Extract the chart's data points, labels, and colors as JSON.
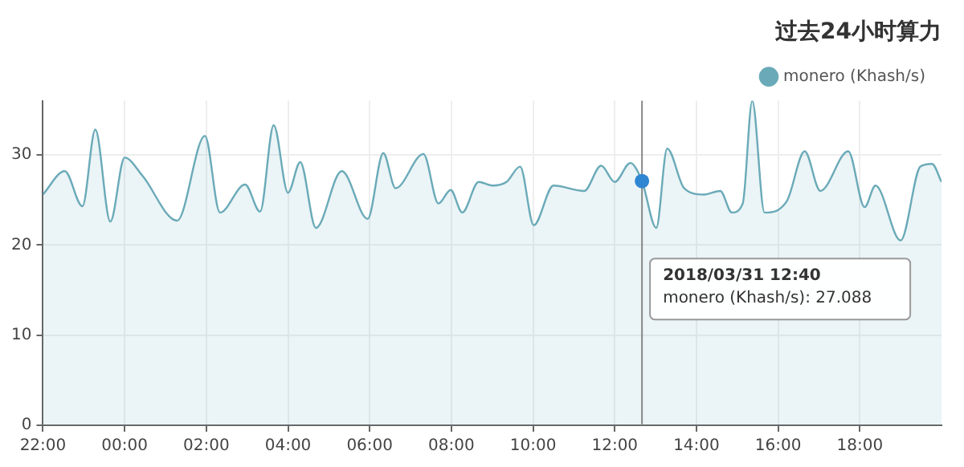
{
  "chart_data": {
    "type": "area",
    "title": "过去24小时算力",
    "legend": "top right",
    "grid": true,
    "marker": "none",
    "xlim": [
      "2018-03-30T22:00",
      "2018-03-31T20:00"
    ],
    "ylim": [
      0,
      36
    ],
    "yticks": [
      0,
      10,
      20,
      30
    ],
    "xticks": [
      {
        "value": "2018-03-30T22:00",
        "label": "22:00"
      },
      {
        "value": "2018-03-31T00:00",
        "label": "00:00"
      },
      {
        "value": "2018-03-31T02:00",
        "label": "02:00"
      },
      {
        "value": "2018-03-31T04:00",
        "label": "04:00"
      },
      {
        "value": "2018-03-31T06:00",
        "label": "06:00"
      },
      {
        "value": "2018-03-31T08:00",
        "label": "08:00"
      },
      {
        "value": "2018-03-31T10:00",
        "label": "10:00"
      },
      {
        "value": "2018-03-31T12:00",
        "label": "12:00"
      },
      {
        "value": "2018-03-31T14:00",
        "label": "14:00"
      },
      {
        "value": "2018-03-31T16:00",
        "label": "16:00"
      },
      {
        "value": "2018-03-31T18:00",
        "label": "18:00"
      }
    ],
    "ref_lines": [
      {
        "axis": "x",
        "value": "2018-03-31T12:40",
        "color": "#888888"
      }
    ],
    "annotations": [
      "2018/03/31 12:40",
      "monero (Khash/s): 27.088"
    ],
    "series": [
      {
        "name": "monero (Khash/s)",
        "color": "#6aaab8",
        "x": [
          "2018-03-30T22:00",
          "2018-03-30T22:32",
          "2018-03-30T22:58",
          "2018-03-30T23:17",
          "2018-03-30T23:39",
          "2018-03-31T00:00",
          "2018-03-31T00:26",
          "2018-03-31T01:17",
          "2018-03-31T01:58",
          "2018-03-31T02:20",
          "2018-03-31T02:57",
          "2018-03-31T03:19",
          "2018-03-31T03:39",
          "2018-03-31T04:00",
          "2018-03-31T04:18",
          "2018-03-31T04:41",
          "2018-03-31T05:19",
          "2018-03-31T05:57",
          "2018-03-31T06:20",
          "2018-03-31T06:38",
          "2018-03-31T07:19",
          "2018-03-31T07:41",
          "2018-03-31T07:59",
          "2018-03-31T08:16",
          "2018-03-31T08:40",
          "2018-03-31T09:00",
          "2018-03-31T09:21",
          "2018-03-31T09:41",
          "2018-03-31T10:01",
          "2018-03-31T10:30",
          "2018-03-31T11:15",
          "2018-03-31T11:40",
          "2018-03-31T12:00",
          "2018-03-31T12:23",
          "2018-03-31T12:40",
          "2018-03-31T13:01",
          "2018-03-31T13:17",
          "2018-03-31T13:42",
          "2018-03-31T14:11",
          "2018-03-31T14:35",
          "2018-03-31T14:52",
          "2018-03-31T15:08",
          "2018-03-31T15:22",
          "2018-03-31T15:40",
          "2018-03-31T16:13",
          "2018-03-31T16:39",
          "2018-03-31T17:02",
          "2018-03-31T17:43",
          "2018-03-31T18:07",
          "2018-03-31T18:23",
          "2018-03-31T19:00",
          "2018-03-31T19:29",
          "2018-03-31T19:46",
          "2018-03-31T20:00"
        ],
        "values": [
          25.6,
          28.2,
          24.3,
          32.8,
          22.6,
          29.7,
          27.7,
          22.7,
          32.1,
          23.6,
          26.7,
          23.7,
          33.3,
          25.8,
          29.2,
          21.9,
          28.2,
          22.9,
          30.2,
          26.3,
          30.1,
          24.6,
          26.1,
          23.6,
          27,
          26.6,
          27,
          28.7,
          22.2,
          26.6,
          26,
          28.8,
          27,
          29.1,
          27.088,
          21.9,
          30.7,
          26.3,
          25.6,
          26,
          23.6,
          24.6,
          36,
          23.6,
          24.9,
          30.4,
          26,
          30.4,
          24.2,
          26.6,
          20.5,
          28.7,
          29,
          27
        ]
      }
    ]
  }
}
